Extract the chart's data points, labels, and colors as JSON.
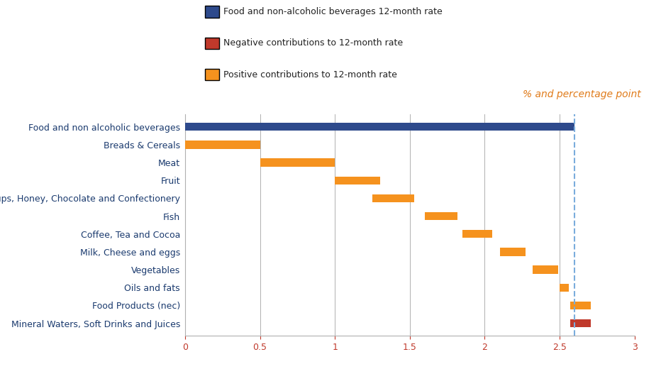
{
  "categories": [
    "Food and non alcoholic beverages",
    "Breads & Cereals",
    "Meat",
    "Fruit",
    "Sugar, Jam, Syrups, Honey, Chocolate and Confectionery",
    "Fish",
    "Coffee, Tea and Cocoa",
    "Milk, Cheese and eggs",
    "Vegetables",
    "Oils and fats",
    "Food Products (nec)",
    "Mineral Waters, Soft Drinks and Juices"
  ],
  "bar_starts": [
    0.0,
    0.0,
    0.5,
    1.0,
    1.25,
    1.6,
    1.85,
    2.1,
    2.32,
    2.5,
    2.57,
    2.57
  ],
  "bar_widths": [
    2.6,
    0.5,
    0.5,
    0.3,
    0.28,
    0.22,
    0.2,
    0.17,
    0.17,
    0.06,
    0.14,
    0.14
  ],
  "bar_colors": [
    "#2e4a8c",
    "#f5921e",
    "#f5921e",
    "#f5921e",
    "#f5921e",
    "#f5921e",
    "#f5921e",
    "#f5921e",
    "#f5921e",
    "#f5921e",
    "#f5921e",
    "#c0392b"
  ],
  "dashed_line_x": 2.6,
  "xlim": [
    0,
    3.0
  ],
  "xticks": [
    0,
    0.5,
    1.0,
    1.5,
    2.0,
    2.5,
    3.0
  ],
  "xtick_labels": [
    "0",
    "0.5",
    "1",
    "1.5",
    "2",
    "2.5",
    "3"
  ],
  "ylabel_text": "% and percentage point",
  "legend_items": [
    {
      "label": "Food and non-alcoholic beverages 12-month rate",
      "color": "#2e4a8c"
    },
    {
      "label": "Negative contributions to 12-month rate",
      "color": "#c0392b"
    },
    {
      "label": "Positive contributions to 12-month rate",
      "color": "#f5921e"
    }
  ],
  "bar_height": 0.45,
  "background_color": "#ffffff",
  "grid_color": "#b0b0b0",
  "dashed_color": "#7aacdc",
  "xtick_color": "#c0392b",
  "label_color": "#1a3a6e",
  "label_fontsize": 9,
  "xtick_fontsize": 9,
  "top_label_color": "#e07b1a"
}
